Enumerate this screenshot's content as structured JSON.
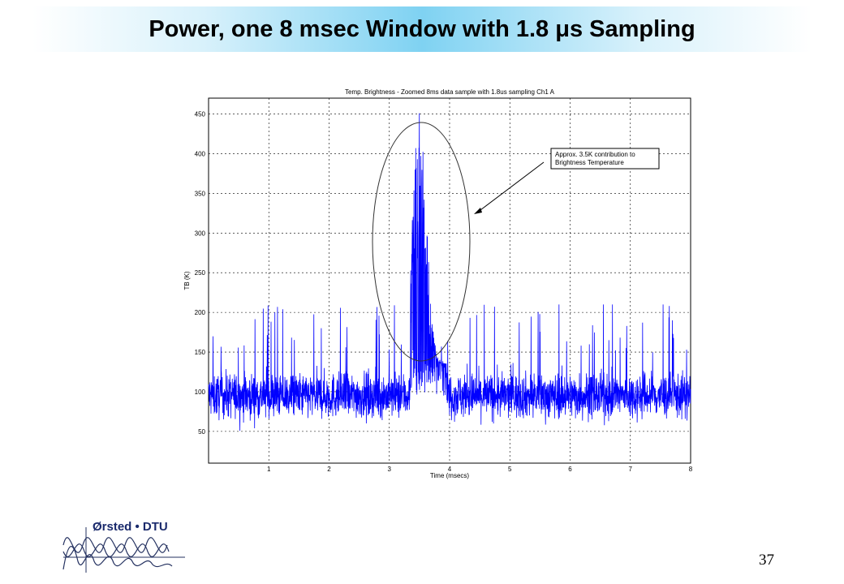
{
  "slide": {
    "title": "Power, one 8 msec Window with 1.8 μs Sampling",
    "page_number": "37",
    "logo_text": "Ørsted • DTU"
  },
  "colors": {
    "trace": "#0000ff",
    "grid": "#000000",
    "axis": "#000000",
    "title_band": "#7fd2f2"
  },
  "chart_data": {
    "type": "line",
    "title": "Temp. Brightness - Zoomed 8ms data sample with 1.8us sampling Ch1 A",
    "xlabel": "Time (msecs)",
    "ylabel": "TB (K)",
    "xlim": [
      0,
      8
    ],
    "ylim": [
      10,
      470
    ],
    "xticks": [
      1,
      2,
      3,
      4,
      5,
      6,
      7,
      8
    ],
    "yticks": [
      50,
      100,
      150,
      200,
      250,
      300,
      350,
      400,
      450
    ],
    "grid": true,
    "series": [
      {
        "sampling_us": 1.8,
        "baseline_mean_K": 95,
        "noise_range_K": [
          10,
          210
        ],
        "burst_window_msecs": [
          3.35,
          3.95
        ],
        "burst_peak_K": 455,
        "burst_peak_time_msecs": 3.5
      }
    ],
    "annotation": {
      "text_line1": "Approx. 3.5K contribution to",
      "text_line2": "Brightness Temperature"
    }
  }
}
